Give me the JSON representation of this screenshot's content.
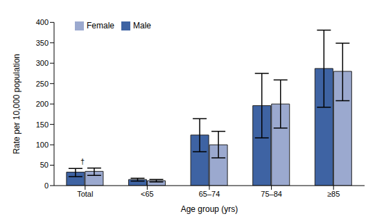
{
  "chart_data": {
    "type": "bar",
    "x_label": "Age group (yrs)",
    "y_label": "Rate per 10,000 population",
    "categories": [
      "Total",
      "<65",
      "65–74",
      "75–84",
      "≥85"
    ],
    "series": [
      {
        "name": "Male",
        "color": "#3e63a3",
        "values": [
          33,
          15,
          124,
          196,
          287
        ],
        "errors": [
          [
            11,
            9
          ],
          [
            4,
            3
          ],
          [
            41,
            40
          ],
          [
            79,
            79
          ],
          [
            95,
            94
          ]
        ]
      },
      {
        "name": "Female",
        "color": "#9ba9cf",
        "values": [
          35,
          12,
          100,
          200,
          280
        ],
        "errors": [
          [
            10,
            8
          ],
          [
            3,
            3
          ],
          [
            32,
            33
          ],
          [
            59,
            59
          ],
          [
            72,
            69
          ]
        ]
      }
    ],
    "ylim": [
      0,
      400
    ],
    "yticks": [
      0,
      50,
      100,
      150,
      200,
      250,
      300,
      350,
      400
    ],
    "grid": false,
    "legend": "upper left",
    "annotations": [
      {
        "text": "†",
        "category": "Total",
        "series": "Male"
      }
    ]
  }
}
